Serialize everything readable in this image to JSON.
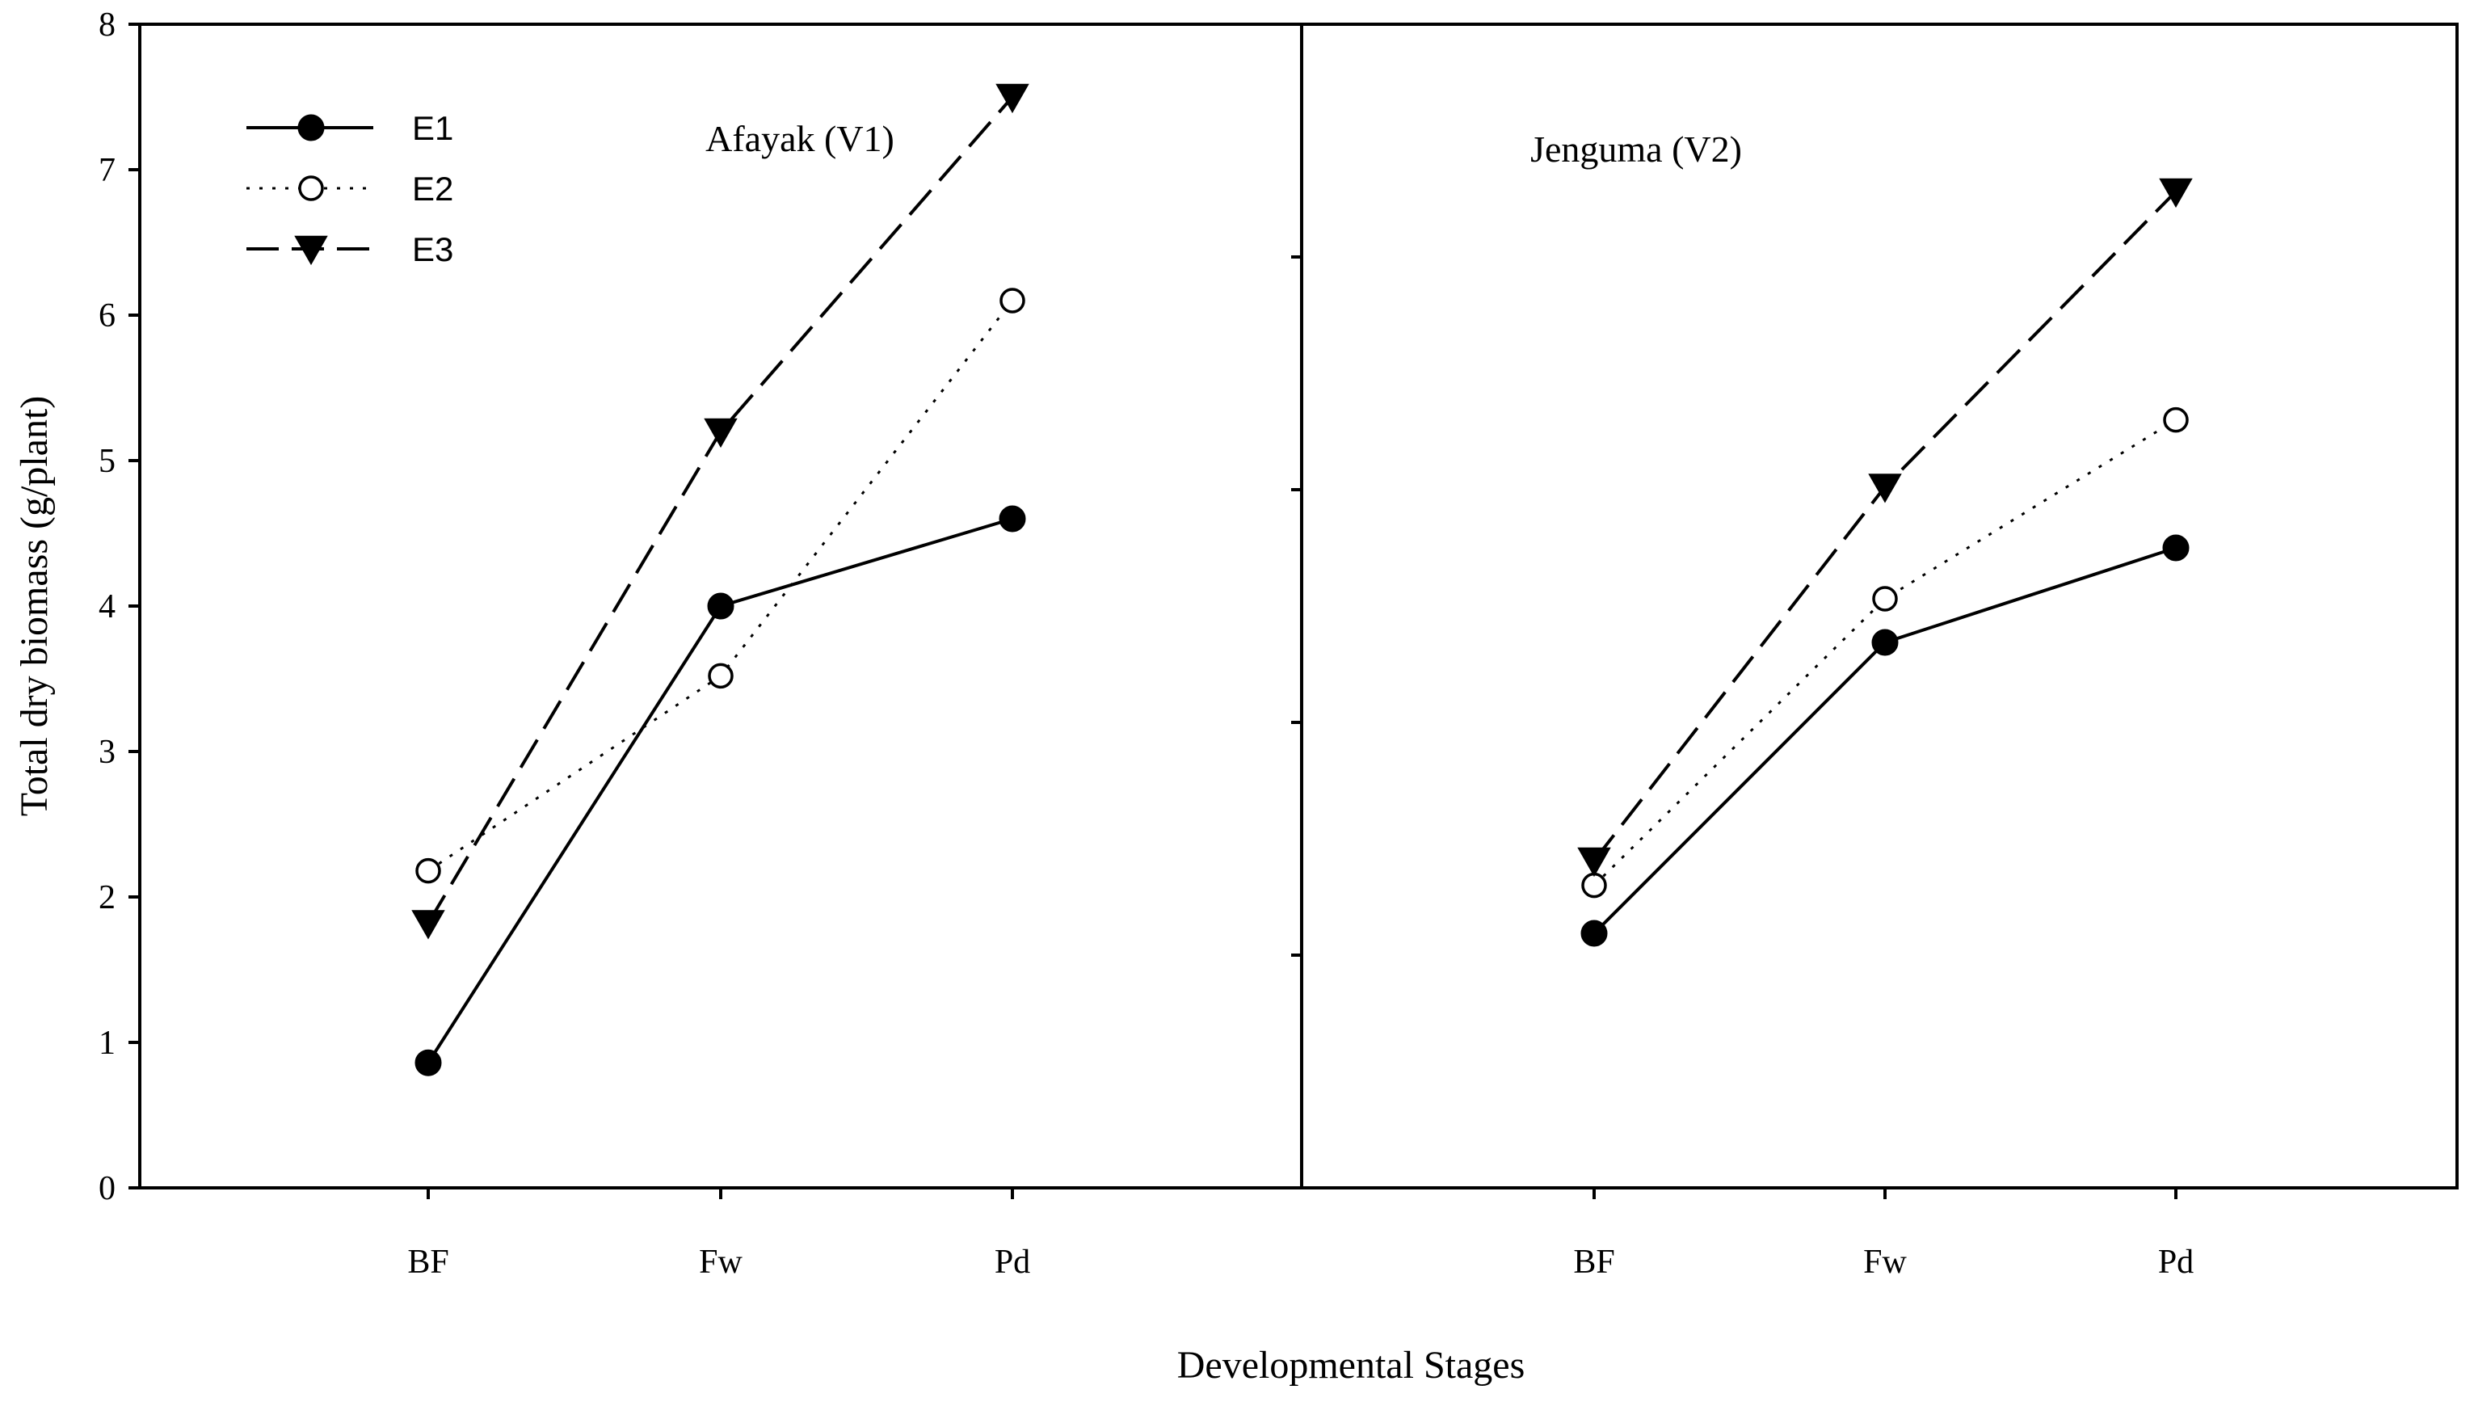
{
  "chart_data": {
    "type": "line",
    "ylabel": "Total dry biomass (g/plant)",
    "xlabel": "Developmental Stages",
    "ylim": [
      0,
      8
    ],
    "yticks": [
      "0",
      "1",
      "2",
      "3",
      "4",
      "5",
      "6",
      "7",
      "8"
    ],
    "categories": [
      "BF",
      "Fw",
      "Pd"
    ],
    "legend": {
      "position": "top-left",
      "entries": [
        {
          "name": "E1",
          "marker": "filled-circle",
          "line": "solid"
        },
        {
          "name": "E2",
          "marker": "open-circle",
          "line": "dotted"
        },
        {
          "name": "E3",
          "marker": "filled-triangle-down",
          "line": "dashed"
        }
      ]
    },
    "panels": [
      {
        "title": "Afayak (V1)",
        "series": [
          {
            "name": "E1",
            "values": [
              0.86,
              4.0,
              4.6
            ]
          },
          {
            "name": "E2",
            "values": [
              2.18,
              3.52,
              6.1
            ]
          },
          {
            "name": "E3",
            "values": [
              1.82,
              5.2,
              7.5
            ]
          }
        ]
      },
      {
        "title": "Jenguma (V2)",
        "series": [
          {
            "name": "E1",
            "values": [
              1.75,
              3.75,
              4.4
            ]
          },
          {
            "name": "E2",
            "values": [
              2.08,
              4.05,
              5.28
            ]
          },
          {
            "name": "E3",
            "values": [
              2.25,
              4.82,
              6.85
            ]
          }
        ]
      }
    ]
  }
}
